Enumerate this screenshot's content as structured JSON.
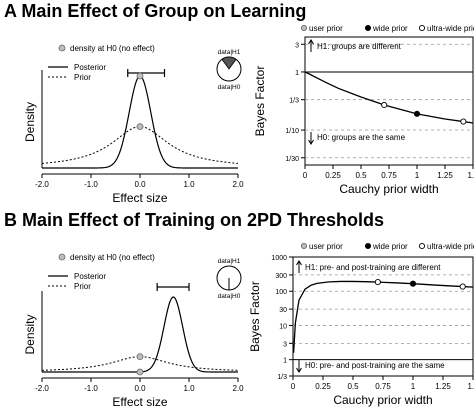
{
  "panels": {
    "a": {
      "letter": "A",
      "title": "Main Effect of Group on Learning"
    },
    "b": {
      "letter": "B",
      "title": "Main Effect of Training on 2PD Thresholds"
    }
  },
  "chart_data": [
    {
      "id": "A-density",
      "type": "line",
      "xlabel": "Effect size",
      "ylabel": "Density",
      "xlim": [
        -2.0,
        2.0
      ],
      "xticks": [
        "-2.0",
        "-1.0",
        "0.0",
        "1.0",
        "2.0"
      ],
      "legend": {
        "marker_label": "density at H0 (no effect)",
        "series_labels": [
          "Posterior",
          "Prior"
        ],
        "placement": "top-left"
      },
      "pie": {
        "top_label": "data|H1",
        "bottom_label": "data|H0",
        "h1_share": 0.8
      },
      "interval": [
        -0.25,
        0.5
      ],
      "series": [
        {
          "name": "Posterior",
          "style": "solid",
          "mean": 0.0,
          "sd": 0.22,
          "peak": 1.0
        },
        {
          "name": "Prior",
          "style": "dotted",
          "cauchy_scale": 0.707,
          "peak": 0.45
        }
      ],
      "h0_points": [
        {
          "series": "Posterior",
          "x": 0.0,
          "density_frac": 1.0
        },
        {
          "series": "Prior",
          "x": 0.0,
          "density_frac": 0.45
        }
      ]
    },
    {
      "id": "A-robustness",
      "type": "line",
      "xlabel": "Cauchy prior width",
      "ylabel": "Bayes Factor",
      "scale": "log",
      "xlim": [
        0,
        1.5
      ],
      "xticks": [
        "0",
        "0.25",
        "0.5",
        "0.75",
        "1",
        "1.25",
        "1.5"
      ],
      "yticks": [
        {
          "label": "3",
          "value": 3
        },
        {
          "label": "1",
          "value": 1
        },
        {
          "label": "1/3",
          "value": 0.3333
        },
        {
          "label": "1/10",
          "value": 0.1
        },
        {
          "label": "1/30",
          "value": 0.0333
        }
      ],
      "ylim": [
        0.025,
        4.0
      ],
      "legend": [
        "user prior",
        "wide prior",
        "ultra-wide prior"
      ],
      "annotations": {
        "top": "H1: groups are different",
        "bottom": "H0: groups are the same"
      },
      "bf_curve": {
        "x": [
          0.0,
          0.02,
          0.05,
          0.1,
          0.2,
          0.3,
          0.5,
          0.707,
          1.0,
          1.25,
          1.414,
          1.5
        ],
        "y": [
          1.0,
          0.96,
          0.9,
          0.8,
          0.64,
          0.52,
          0.37,
          0.27,
          0.19,
          0.155,
          0.14,
          0.132
        ]
      },
      "points": [
        {
          "name": "user prior",
          "x": 0.707,
          "y": 0.27,
          "fill": "#ffffff"
        },
        {
          "name": "wide prior",
          "x": 1.0,
          "y": 0.19,
          "fill": "#000000"
        },
        {
          "name": "ultra-wide prior",
          "x": 1.414,
          "y": 0.14,
          "fill": "#ffffff"
        }
      ]
    },
    {
      "id": "B-density",
      "type": "line",
      "xlabel": "Effect size",
      "ylabel": "Density",
      "xlim": [
        -2.0,
        2.0
      ],
      "xticks": [
        "-2.0",
        "-1.0",
        "0.0",
        "1.0",
        "2.0"
      ],
      "legend": {
        "marker_label": "density at H0 (no effect)",
        "series_labels": [
          "Posterior",
          "Prior"
        ],
        "placement": "top-left"
      },
      "pie": {
        "top_label": "data|H1",
        "bottom_label": "data|H0",
        "h1_share": 1.0
      },
      "interval": [
        0.35,
        1.0
      ],
      "series": [
        {
          "name": "Posterior",
          "style": "solid",
          "mean": 0.68,
          "sd": 0.19,
          "peak": 1.0
        },
        {
          "name": "Prior",
          "style": "dotted",
          "cauchy_scale": 0.707,
          "peak": 0.205
        }
      ],
      "h0_points": [
        {
          "series": "Prior",
          "x": 0.0,
          "density_frac": 0.205
        },
        {
          "series": "Posterior",
          "x": 0.0,
          "density_frac": 0.0
        }
      ]
    },
    {
      "id": "B-robustness",
      "type": "line",
      "xlabel": "Cauchy prior width",
      "ylabel": "Bayes Factor",
      "scale": "log",
      "xlim": [
        0,
        1.5
      ],
      "xticks": [
        "0",
        "0.25",
        "0.5",
        "0.75",
        "1",
        "1.25",
        "1.5"
      ],
      "yticks": [
        {
          "label": "1000",
          "value": 1000
        },
        {
          "label": "300",
          "value": 300
        },
        {
          "label": "100",
          "value": 100
        },
        {
          "label": "30",
          "value": 30
        },
        {
          "label": "10",
          "value": 10
        },
        {
          "label": "3",
          "value": 3
        },
        {
          "label": "1",
          "value": 1
        },
        {
          "label": "1/3",
          "value": 0.3333
        }
      ],
      "ylim": [
        0.3333,
        1000
      ],
      "legend": [
        "user prior",
        "wide prior",
        "ultra-wide prior"
      ],
      "annotations": {
        "top": "H1: pre- and post-training are different",
        "bottom": "H0: pre- and post-training are the same"
      },
      "bf_curve": {
        "x": [
          0.005,
          0.02,
          0.05,
          0.1,
          0.15,
          0.2,
          0.3,
          0.4,
          0.5,
          0.6,
          0.707,
          0.85,
          1.0,
          1.2,
          1.414,
          1.5
        ],
        "y": [
          1.6,
          12,
          55,
          115,
          150,
          170,
          188,
          193,
          193,
          190,
          185,
          176,
          166,
          150,
          137,
          132
        ]
      },
      "points": [
        {
          "name": "user prior",
          "x": 0.707,
          "y": 185,
          "fill": "#ffffff"
        },
        {
          "name": "wide prior",
          "x": 1.0,
          "y": 166,
          "fill": "#000000"
        },
        {
          "name": "ultra-wide prior",
          "x": 1.414,
          "y": 137,
          "fill": "#ffffff"
        }
      ]
    }
  ]
}
